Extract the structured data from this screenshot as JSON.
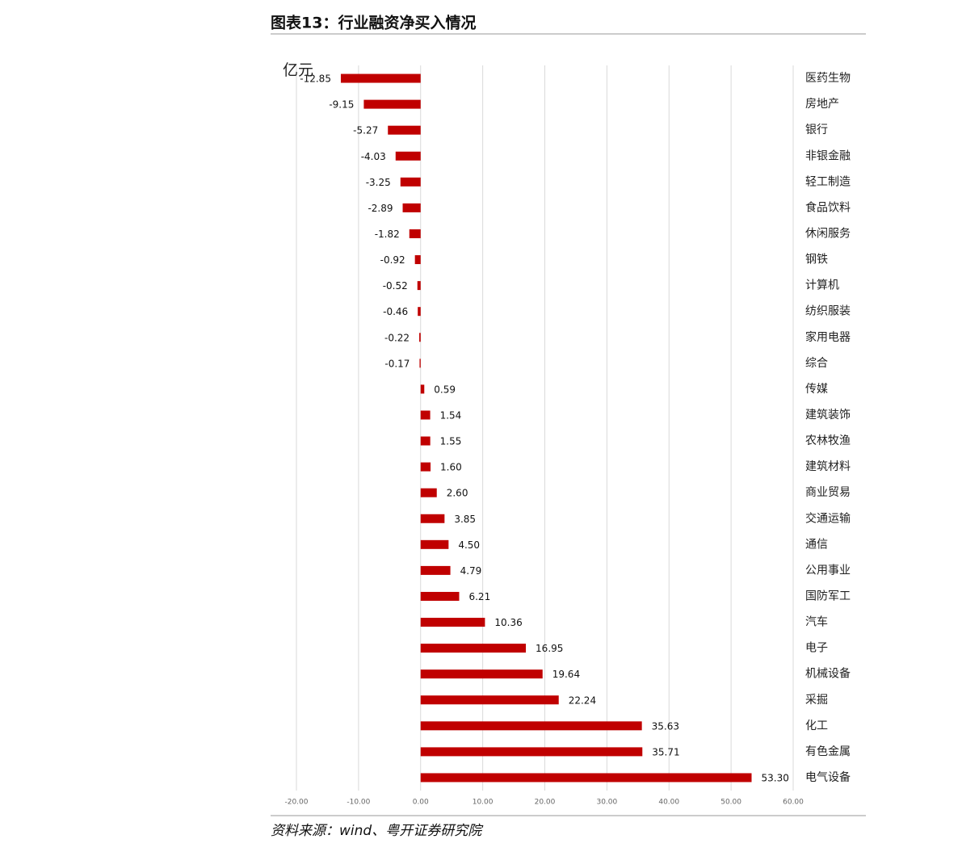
{
  "chart_data": {
    "type": "barh",
    "title": "图表13：行业融资净买入情况",
    "unit_label": "亿元",
    "source": "资料来源：wind、粤开证券研究院",
    "color": "#c00000",
    "grid": true,
    "categories": [
      "医药生物",
      "房地产",
      "银行",
      "非银金融",
      "轻工制造",
      "食品饮料",
      "休闲服务",
      "钢铁",
      "计算机",
      "纺织服装",
      "家用电器",
      "综合",
      "传媒",
      "建筑装饰",
      "农林牧渔",
      "建筑材料",
      "商业贸易",
      "交通运输",
      "通信",
      "公用事业",
      "国防军工",
      "汽车",
      "电子",
      "机械设备",
      "采掘",
      "化工",
      "有色金属",
      "电气设备"
    ],
    "values": [
      -12.85,
      -9.15,
      -5.27,
      -4.03,
      -3.25,
      -2.89,
      -1.82,
      -0.92,
      -0.52,
      -0.46,
      -0.22,
      -0.17,
      0.59,
      1.54,
      1.55,
      1.6,
      2.6,
      3.85,
      4.5,
      4.79,
      6.21,
      10.36,
      16.95,
      19.64,
      22.24,
      35.63,
      35.71,
      53.3
    ],
    "value_labels": [
      "-12.85",
      "-9.15",
      "-5.27",
      "-4.03",
      "-3.25",
      "-2.89",
      "-1.82",
      "-0.92",
      "-0.52",
      "-0.46",
      "-0.22",
      "-0.17",
      "0.59",
      "1.54",
      "1.55",
      "1.60",
      "2.60",
      "3.85",
      "4.50",
      "4.79",
      "6.21",
      "10.36",
      "16.95",
      "19.64",
      "22.24",
      "35.63",
      "35.71",
      "53.30"
    ],
    "xlim": [
      -20,
      60
    ],
    "xticks": [
      {
        "value": -20,
        "label": "-20.00"
      },
      {
        "value": -10,
        "label": "-10.00"
      },
      {
        "value": 0,
        "label": "0.00"
      },
      {
        "value": 10,
        "label": "10.00"
      },
      {
        "value": 20,
        "label": "20.00"
      },
      {
        "value": 30,
        "label": "30.00"
      },
      {
        "value": 40,
        "label": "40.00"
      },
      {
        "value": 50,
        "label": "50.00"
      },
      {
        "value": 60,
        "label": "60.00"
      }
    ]
  }
}
